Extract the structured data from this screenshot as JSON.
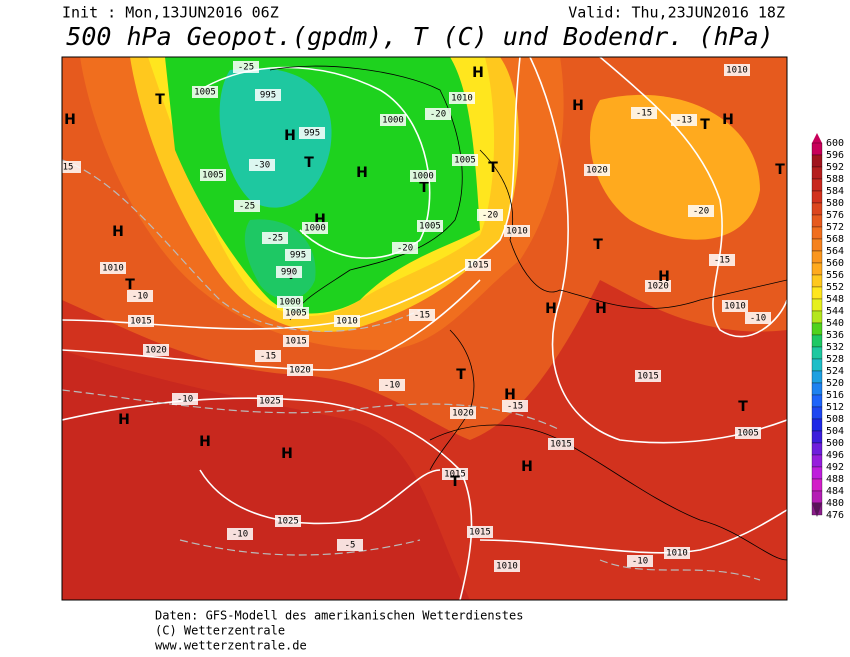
{
  "header": {
    "init": "Init : Mon,13JUN2016 06Z",
    "valid": "Valid: Thu,23JUN2016 18Z",
    "title": "500 hPa Geopot.(gpdm), T (C) und Bodendr. (hPa)"
  },
  "colorbar": {
    "levels": [
      600,
      596,
      592,
      588,
      584,
      580,
      576,
      572,
      568,
      564,
      560,
      556,
      552,
      548,
      544,
      540,
      536,
      532,
      528,
      524,
      520,
      516,
      512,
      508,
      504,
      500,
      496,
      492,
      488,
      484,
      480,
      476
    ],
    "colors": [
      "#c8005a",
      "#a0141e",
      "#b41e1e",
      "#c8281e",
      "#d2321e",
      "#dc461e",
      "#e65a1e",
      "#f06e1e",
      "#f5821e",
      "#fa961e",
      "#ffaa1e",
      "#ffc81e",
      "#ffe61e",
      "#e6f01e",
      "#b4e61e",
      "#50d21e",
      "#1ec864",
      "#1ec8a0",
      "#1ebec8",
      "#1ea0e1",
      "#1e82f0",
      "#1e64fa",
      "#1e46f0",
      "#1e28e6",
      "#3c1edc",
      "#6e1edc",
      "#961edc",
      "#be1edc",
      "#d21ec8",
      "#b41eb4",
      "#8c1e8c",
      "#5a145a"
    ]
  },
  "map_labels": [
    "H",
    "T",
    "1005",
    "995",
    "1005",
    "-25",
    "H",
    "995",
    "-30",
    "T",
    "H",
    "1000",
    "-20",
    "1010",
    "H",
    "1005",
    "T",
    "-25",
    "H",
    "1000",
    "T",
    "1000",
    "-25",
    "995",
    "1010",
    "H",
    "T",
    "-10",
    "T",
    "990",
    "1000",
    "1005",
    "1010",
    "-20",
    "1005",
    "-20",
    "1010",
    "1015",
    "-15",
    "1015",
    "1020",
    "-15",
    "1015",
    "1020",
    "-10",
    "1025",
    "-10",
    "H",
    "H",
    "H",
    "1020",
    "T",
    "H",
    "-15",
    "1015",
    "H",
    "1015",
    "T",
    "1025",
    "-10",
    "-5",
    "1015",
    "1010",
    "-10",
    "1010",
    "1005",
    "T",
    "1015",
    "1010",
    "-10",
    "1020",
    "H",
    "H",
    "H",
    "T",
    "-15",
    "-15",
    "-13",
    "T",
    "H",
    "-20",
    "1020",
    "1010",
    "H",
    "T",
    "15"
  ],
  "footer": [
    "Daten: GFS-Modell des amerikanischen Wetterdienstes",
    "(C) Wetterzentrale",
    "www.wetterzentrale.de"
  ]
}
